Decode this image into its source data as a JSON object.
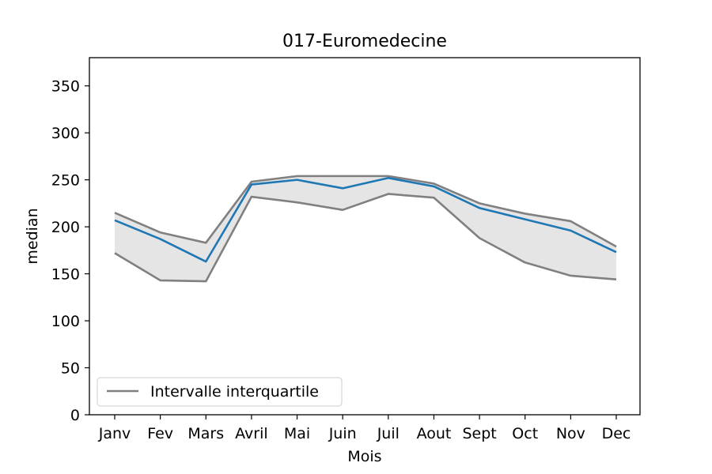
{
  "chart_data": {
    "type": "line",
    "title": "017-Euromedecine",
    "xlabel": "Mois",
    "ylabel": "median",
    "categories": [
      "Janv",
      "Fev",
      "Mars",
      "Avril",
      "Mai",
      "Juin",
      "Juil",
      "Aout",
      "Sept",
      "Oct",
      "Nov",
      "Dec"
    ],
    "ylim": [
      0,
      380
    ],
    "yticks": [
      0,
      50,
      100,
      150,
      200,
      250,
      300,
      350
    ],
    "grid": false,
    "legend": {
      "placement": "lower-left",
      "entries": [
        "Intervalle interquartile"
      ]
    },
    "series": [
      {
        "role": "median",
        "color": "#1f77b4",
        "values": [
          207,
          187,
          163,
          245,
          250,
          241,
          252,
          243,
          220,
          208,
          196,
          173
        ]
      },
      {
        "role": "upper-quartile",
        "color": "#808080",
        "values": [
          215,
          194,
          183,
          248,
          254,
          254,
          254,
          246,
          225,
          214,
          206,
          179
        ]
      },
      {
        "role": "lower-quartile",
        "color": "#808080",
        "values": [
          172,
          143,
          142,
          232,
          226,
          218,
          235,
          231,
          188,
          162,
          148,
          144
        ]
      }
    ],
    "band_fill": "#e5e5e5"
  }
}
